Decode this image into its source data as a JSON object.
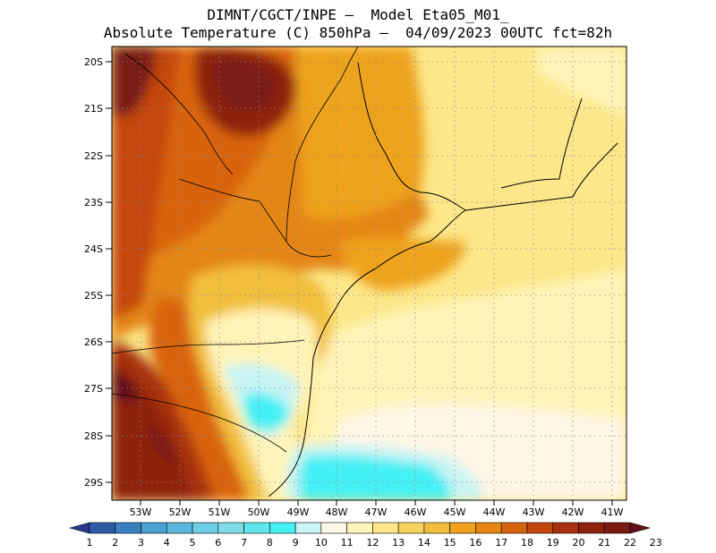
{
  "header": {
    "line1": "DIMNT/CGCT/INPE –  Model Eta05_M01_",
    "line2": "Absolute Temperature (C) 850hPa –  04/09/2023 00UTC fct=82h"
  },
  "axes": {
    "lat_labels": [
      "20S",
      "21S",
      "22S",
      "23S",
      "24S",
      "25S",
      "26S",
      "27S",
      "28S",
      "29S"
    ],
    "lon_labels": [
      "53W",
      "52W",
      "51W",
      "50W",
      "49W",
      "48W",
      "47W",
      "46W",
      "45W",
      "44W",
      "43W",
      "42W",
      "41W"
    ]
  },
  "colorbar": {
    "labels": [
      "1",
      "2",
      "3",
      "4",
      "5",
      "6",
      "7",
      "8",
      "9",
      "10",
      "11",
      "12",
      "13",
      "14",
      "15",
      "16",
      "17",
      "18",
      "19",
      "20",
      "21",
      "22",
      "23"
    ],
    "colors": [
      "#2a3a8f",
      "#2f5aa8",
      "#3a7fc0",
      "#4aa0d0",
      "#5ab8dc",
      "#6ccde4",
      "#80dde8",
      "#5ee6ec",
      "#44f0f4",
      "#c8f4f4",
      "#fff6e6",
      "#fff4b8",
      "#fde78a",
      "#f7d35e",
      "#f2bf3c",
      "#eea31e",
      "#e48612",
      "#d9640e",
      "#c4460c",
      "#a8300c",
      "#8e220e",
      "#7a1a14",
      "#62101a"
    ]
  }
}
